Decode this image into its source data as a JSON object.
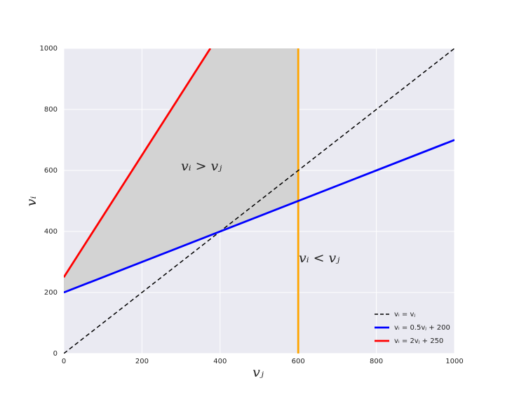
{
  "chart_data": {
    "type": "line",
    "xlabel": "vⱼ",
    "ylabel": "vᵢ",
    "series": [
      {
        "name": "vᵢ = vⱼ",
        "color": "#000000",
        "dash": true,
        "x": [
          0,
          1000
        ],
        "values": [
          0,
          1000
        ]
      },
      {
        "name": "vᵢ = 0.5vⱼ + 200",
        "color": "#0000ff",
        "dash": false,
        "x": [
          0,
          1000
        ],
        "values": [
          200,
          700
        ]
      },
      {
        "name": "vᵢ = 2vⱼ + 250",
        "color": "#ff0000",
        "dash": false,
        "x": [
          0,
          375
        ],
        "values": [
          250,
          1000
        ]
      }
    ],
    "vline": {
      "x": 600,
      "color": "#ffa500"
    },
    "shade": {
      "x": [
        0,
        375,
        600
      ],
      "upper": [
        250,
        1000,
        1000
      ],
      "lower": [
        200,
        387.5,
        500
      ],
      "color": "#d3d3d3"
    },
    "annotations": [
      "vᵢ > vⱼ",
      "vᵢ < vⱼ"
    ],
    "xlim": [
      0,
      1000
    ],
    "ylim": [
      0,
      1000
    ],
    "xticks": [
      0,
      200,
      400,
      600,
      800,
      1000
    ],
    "yticks": [
      0,
      200,
      400,
      600,
      800,
      1000
    ],
    "grid": true,
    "legend": "lower right"
  }
}
